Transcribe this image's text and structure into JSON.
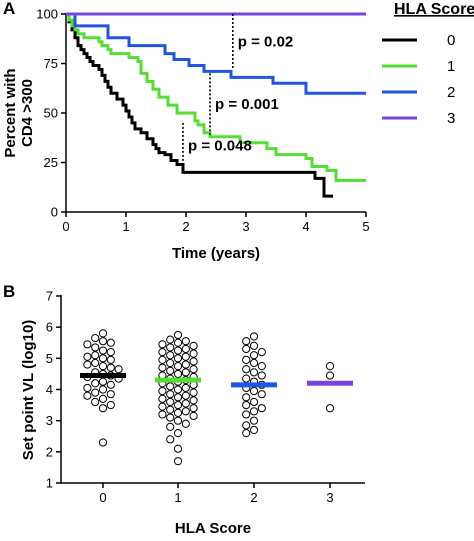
{
  "chart_data": [
    {
      "type": "line",
      "panel_label": "A",
      "xlabel": "Time (years)",
      "ylabel_line1": "Percent with",
      "ylabel_line2": "CD4 >300",
      "xlim": [
        0,
        5
      ],
      "ylim": [
        0,
        100
      ],
      "x_ticks": [
        0,
        1,
        2,
        3,
        4,
        5
      ],
      "y_ticks": [
        0,
        25,
        50,
        75,
        100
      ],
      "legend": {
        "title": "HLA Score",
        "placement": "right",
        "labels": [
          "0",
          "1",
          "2",
          "3"
        ]
      },
      "series": [
        {
          "name": "0",
          "color": "#000000",
          "x": [
            0,
            0.05,
            0.1,
            0.15,
            0.2,
            0.25,
            0.3,
            0.35,
            0.4,
            0.45,
            0.55,
            0.6,
            0.65,
            0.7,
            0.75,
            0.85,
            0.95,
            1.0,
            1.05,
            1.1,
            1.15,
            1.25,
            1.35,
            1.45,
            1.5,
            1.55,
            1.65,
            1.75,
            1.85,
            1.95,
            2.5,
            3.0,
            4.0,
            4.15,
            4.3,
            4.45
          ],
          "y": [
            100,
            96,
            92,
            88,
            84,
            82,
            80,
            78,
            76,
            74,
            72,
            69,
            66,
            63,
            60,
            57,
            54,
            51,
            48,
            45,
            42,
            40,
            37,
            34,
            32,
            30,
            29,
            26,
            24,
            20,
            20,
            20,
            20,
            17,
            8,
            8
          ]
        },
        {
          "name": "1",
          "color": "#55dd33",
          "x": [
            0,
            0.05,
            0.1,
            0.15,
            0.2,
            0.3,
            0.55,
            0.6,
            0.7,
            0.75,
            1.05,
            1.2,
            1.25,
            1.35,
            1.45,
            1.55,
            1.7,
            1.85,
            2.15,
            2.2,
            2.3,
            2.4,
            2.8,
            2.9,
            3.1,
            3.35,
            3.5,
            3.9,
            4.0,
            4.1,
            4.35,
            4.5,
            5.0
          ],
          "y": [
            100,
            97,
            94,
            92,
            90,
            88,
            86,
            84,
            82,
            80,
            78,
            76,
            70,
            66,
            62,
            58,
            54,
            50,
            46,
            44,
            40,
            38,
            38,
            35,
            35,
            32,
            29,
            29,
            27,
            23,
            21,
            16,
            16
          ]
        },
        {
          "name": "2",
          "color": "#2255dd",
          "x": [
            0,
            0.15,
            0.6,
            0.7,
            1.05,
            1.65,
            1.8,
            2.05,
            2.3,
            2.75,
            3.45,
            3.9,
            4.0,
            5.0
          ],
          "y": [
            100,
            94,
            94,
            88,
            84,
            80,
            77,
            74,
            71,
            68,
            65,
            65,
            60,
            60
          ]
        },
        {
          "name": "3",
          "color": "#7744dd",
          "x": [
            0,
            5
          ],
          "y": [
            100,
            100
          ]
        }
      ],
      "annotations": [
        {
          "text": "p = 0.02",
          "x": 2.78,
          "y_top": 100,
          "y_bottom": 72
        },
        {
          "text": "p = 0.001",
          "x": 2.4,
          "y_top": 70,
          "y_bottom": 39
        },
        {
          "text": "p = 0.048",
          "x": 1.95,
          "y_top": 45,
          "y_bottom": 22
        }
      ]
    },
    {
      "type": "scatter",
      "panel_label": "B",
      "xlabel": "HLA Score",
      "ylabel": "Set point VL (log10)",
      "categories": [
        "0",
        "1",
        "2",
        "3"
      ],
      "ylim": [
        1,
        7
      ],
      "y_ticks": [
        1,
        2,
        3,
        4,
        5,
        6,
        7
      ],
      "groups": [
        {
          "name": "0",
          "color": "#000000",
          "mean": 4.45,
          "values": [
            5.8,
            5.65,
            5.55,
            5.5,
            5.45,
            5.35,
            5.25,
            5.2,
            5.1,
            5.05,
            5.0,
            4.95,
            4.85,
            4.8,
            4.75,
            4.7,
            4.65,
            4.55,
            4.5,
            4.45,
            4.4,
            4.35,
            4.25,
            4.2,
            4.15,
            4.05,
            4.0,
            3.9,
            3.85,
            3.8,
            3.7,
            3.6,
            3.5,
            3.4,
            2.3
          ]
        },
        {
          "name": "1",
          "color": "#55dd33",
          "mean": 4.3,
          "values": [
            5.75,
            5.6,
            5.55,
            5.5,
            5.45,
            5.4,
            5.35,
            5.3,
            5.25,
            5.2,
            5.15,
            5.1,
            5.05,
            5.0,
            4.95,
            4.9,
            4.85,
            4.8,
            4.75,
            4.7,
            4.65,
            4.6,
            4.55,
            4.5,
            4.45,
            4.4,
            4.35,
            4.3,
            4.25,
            4.2,
            4.15,
            4.1,
            4.05,
            4.0,
            3.95,
            3.9,
            3.85,
            3.8,
            3.75,
            3.7,
            3.65,
            3.6,
            3.55,
            3.5,
            3.45,
            3.4,
            3.35,
            3.3,
            3.25,
            3.2,
            3.15,
            3.1,
            3.0,
            2.9,
            2.8,
            2.6,
            2.4,
            2.1,
            1.7
          ]
        },
        {
          "name": "2",
          "color": "#2255dd",
          "mean": 4.15,
          "values": [
            5.7,
            5.55,
            5.4,
            5.3,
            5.2,
            5.1,
            4.95,
            4.85,
            4.75,
            4.65,
            4.55,
            4.45,
            4.35,
            4.25,
            4.15,
            4.05,
            3.95,
            3.85,
            3.75,
            3.6,
            3.5,
            3.4,
            3.3,
            3.2,
            3.0,
            2.85,
            2.7,
            2.6
          ]
        },
        {
          "name": "3",
          "color": "#7744dd",
          "mean": 4.2,
          "values": [
            4.75,
            4.45,
            3.4
          ]
        }
      ]
    }
  ]
}
